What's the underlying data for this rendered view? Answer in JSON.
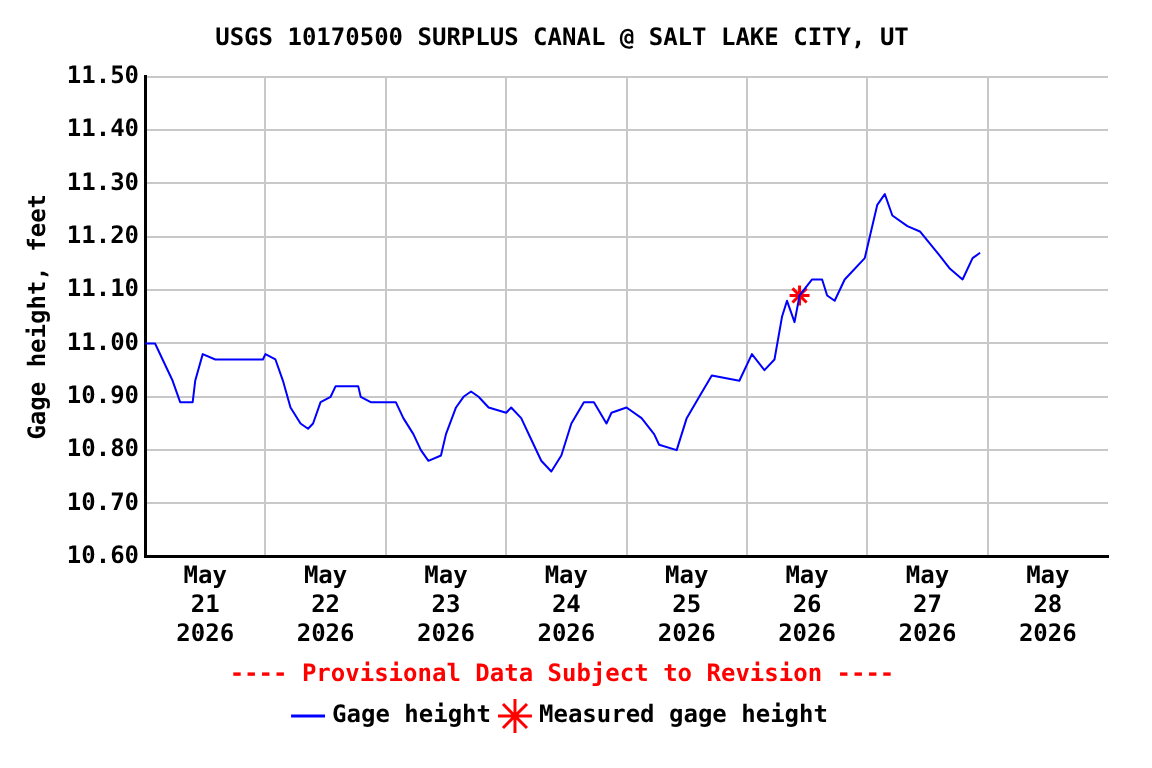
{
  "chart_data": {
    "type": "line",
    "title": "USGS 10170500 SURPLUS CANAL @ SALT LAKE CITY, UT",
    "ylabel": "Gage height, feet",
    "series": [
      {
        "name": "Gage height",
        "color": "#0000ff",
        "marker": "none",
        "line_style": "solid",
        "x": [
          "2026-05-21T00:00",
          "2026-05-21T02:00",
          "2026-05-21T03:30",
          "2026-05-21T05:30",
          "2026-05-21T07:00",
          "2026-05-21T09:30",
          "2026-05-21T10:00",
          "2026-05-21T11:30",
          "2026-05-21T14:00",
          "2026-05-21T17:00",
          "2026-05-21T20:00",
          "2026-05-21T23:30",
          "2026-05-22T00:00",
          "2026-05-22T02:00",
          "2026-05-22T03:30",
          "2026-05-22T05:00",
          "2026-05-22T07:00",
          "2026-05-22T08:30",
          "2026-05-22T09:30",
          "2026-05-22T11:00",
          "2026-05-22T13:00",
          "2026-05-22T14:00",
          "2026-05-22T18:30",
          "2026-05-22T19:00",
          "2026-05-22T21:00",
          "2026-05-22T21:30",
          "2026-05-23T02:00",
          "2026-05-23T03:30",
          "2026-05-23T05:30",
          "2026-05-23T07:00",
          "2026-05-23T08:30",
          "2026-05-23T11:00",
          "2026-05-23T12:00",
          "2026-05-23T14:00",
          "2026-05-23T15:30",
          "2026-05-23T17:00",
          "2026-05-23T18:30",
          "2026-05-23T20:30",
          "2026-05-24T00:00",
          "2026-05-24T01:00",
          "2026-05-24T03:00",
          "2026-05-24T05:00",
          "2026-05-24T07:00",
          "2026-05-24T09:00",
          "2026-05-24T11:00",
          "2026-05-24T13:00",
          "2026-05-24T15:30",
          "2026-05-24T17:30",
          "2026-05-24T20:00",
          "2026-05-24T21:00",
          "2026-05-25T00:00",
          "2026-05-25T03:00",
          "2026-05-25T05:30",
          "2026-05-25T06:30",
          "2026-05-25T10:00",
          "2026-05-25T12:00",
          "2026-05-25T14:30",
          "2026-05-25T17:00",
          "2026-05-25T22:30",
          "2026-05-26T01:00",
          "2026-05-26T03:30",
          "2026-05-26T05:30",
          "2026-05-26T07:00",
          "2026-05-26T08:00",
          "2026-05-26T09:30",
          "2026-05-26T10:30",
          "2026-05-26T13:00",
          "2026-05-26T15:00",
          "2026-05-26T16:00",
          "2026-05-26T17:30",
          "2026-05-26T19:30",
          "2026-05-26T23:30",
          "2026-05-27T00:30",
          "2026-05-27T02:00",
          "2026-05-27T03:30",
          "2026-05-27T05:00",
          "2026-05-27T08:00",
          "2026-05-27T10:30",
          "2026-05-27T14:00",
          "2026-05-27T16:30",
          "2026-05-27T19:00",
          "2026-05-27T21:00",
          "2026-05-27T22:30"
        ],
        "values": [
          11.0,
          11.0,
          10.97,
          10.93,
          10.89,
          10.89,
          10.93,
          10.98,
          10.97,
          10.97,
          10.97,
          10.97,
          10.98,
          10.97,
          10.93,
          10.88,
          10.85,
          10.84,
          10.85,
          10.89,
          10.9,
          10.92,
          10.92,
          10.9,
          10.89,
          10.89,
          10.89,
          10.86,
          10.83,
          10.8,
          10.78,
          10.79,
          10.83,
          10.88,
          10.9,
          10.91,
          10.9,
          10.88,
          10.87,
          10.88,
          10.86,
          10.82,
          10.78,
          10.76,
          10.79,
          10.85,
          10.89,
          10.89,
          10.85,
          10.87,
          10.88,
          10.86,
          10.83,
          10.81,
          10.8,
          10.86,
          10.9,
          10.94,
          10.93,
          10.98,
          10.95,
          10.97,
          11.05,
          11.08,
          11.04,
          11.09,
          11.12,
          11.12,
          11.09,
          11.08,
          11.12,
          11.16,
          11.2,
          11.26,
          11.28,
          11.24,
          11.22,
          11.21,
          11.17,
          11.14,
          11.12,
          11.16,
          11.17
        ]
      },
      {
        "name": "Measured gage height",
        "type": "scatter",
        "color": "#ff0000",
        "marker": "cross",
        "x": [
          "2026-05-26T10:30"
        ],
        "values": [
          11.09
        ]
      }
    ],
    "xlim": [
      "2026-05-21T00:00",
      "2026-05-29T00:00"
    ],
    "xticks": [
      {
        "value": "2026-05-21T12:00",
        "label": "May\n21\n2026"
      },
      {
        "value": "2026-05-22T00:00",
        "label": null
      },
      {
        "value": "2026-05-22T12:00",
        "label": "May\n22\n2026"
      },
      {
        "value": "2026-05-23T00:00",
        "label": null
      },
      {
        "value": "2026-05-23T12:00",
        "label": "May\n23\n2026"
      },
      {
        "value": "2026-05-24T00:00",
        "label": null
      },
      {
        "value": "2026-05-24T12:00",
        "label": "May\n24\n2026"
      },
      {
        "value": "2026-05-25T00:00",
        "label": null
      },
      {
        "value": "2026-05-25T12:00",
        "label": "May\n25\n2026"
      },
      {
        "value": "2026-05-26T00:00",
        "label": null
      },
      {
        "value": "2026-05-26T12:00",
        "label": "May\n26\n2026"
      },
      {
        "value": "2026-05-27T00:00",
        "label": null
      },
      {
        "value": "2026-05-27T12:00",
        "label": "May\n27\n2026"
      },
      {
        "value": "2026-05-28T00:00",
        "label": null
      },
      {
        "value": "2026-05-28T12:00",
        "label": "May\n28\n2026"
      }
    ],
    "ylim": [
      10.6,
      11.5
    ],
    "yticks": [
      {
        "value": 10.6,
        "label": "10.60"
      },
      {
        "value": 10.7,
        "label": "10.70"
      },
      {
        "value": 10.8,
        "label": "10.80"
      },
      {
        "value": 10.9,
        "label": "10.90"
      },
      {
        "value": 11.0,
        "label": "11.00"
      },
      {
        "value": 11.1,
        "label": "11.10"
      },
      {
        "value": 11.2,
        "label": "11.20"
      },
      {
        "value": 11.3,
        "label": "11.30"
      },
      {
        "value": 11.4,
        "label": "11.40"
      },
      {
        "value": 11.5,
        "label": "11.50"
      }
    ],
    "grid": true,
    "legend": "bottom",
    "annotations": [
      "---- Provisional Data Subject to Revision ----"
    ]
  }
}
